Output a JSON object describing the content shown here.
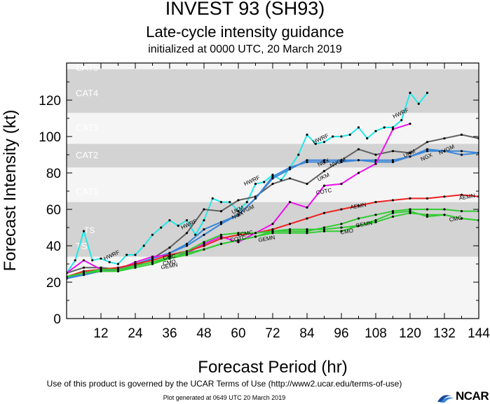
{
  "header": {
    "title": "INVEST 93 (SH93)",
    "subtitle": "Late-cycle intensity guidance",
    "init_line": "initialized at 0000 UTC, 20 March 2019"
  },
  "footer": {
    "terms": "Use of this product is governed by the UCAR Terms of Use (http://www2.ucar.edu/terms-of-use)",
    "generated": "Plot generated at 0649 UTC   20 March 2019",
    "logo_text": "NCAR"
  },
  "colors": {
    "band_dark": "#d3d3d3",
    "band_light": "#f5f5f5",
    "HWRF": "#22e8e8",
    "NGX": "#3a86d8",
    "UKM": "#606060",
    "COTC": "#ee11ee",
    "AEMN": "#ee2020",
    "CMC": "#33cc33",
    "GEMN": "#33cc33",
    "CMO": "#33cc33",
    "NVGM": "#3a86d8",
    "base": "#2a40b0"
  },
  "chart_data": {
    "type": "line",
    "title": "Late-cycle intensity guidance",
    "xlabel": "Forecast Period (hr)",
    "ylabel": "Forecast Intensity (kt)",
    "xlim": [
      0,
      144
    ],
    "ylim": [
      0,
      135
    ],
    "xticks": [
      12,
      24,
      36,
      48,
      60,
      72,
      84,
      96,
      108,
      120,
      132,
      144
    ],
    "yticks": [
      0,
      20,
      40,
      60,
      80,
      100,
      120
    ],
    "categories_bands": [
      {
        "label": "TS",
        "from": 34,
        "to": 64,
        "shade": "dark"
      },
      {
        "label": "CAT1",
        "from": 64,
        "to": 83,
        "shade": "light"
      },
      {
        "label": "CAT2",
        "from": 83,
        "to": 96,
        "shade": "dark"
      },
      {
        "label": "CAT3",
        "from": 96,
        "to": 113,
        "shade": "light"
      },
      {
        "label": "CAT4",
        "from": 113,
        "to": 137,
        "shade": "dark"
      },
      {
        "label": "CAT5",
        "from": 137,
        "to": 160,
        "shade": "light"
      }
    ],
    "series": [
      {
        "name": "HWRF",
        "color_key": "HWRF",
        "x": [
          0,
          3,
          6,
          9,
          12,
          15,
          18,
          21,
          24,
          27,
          30,
          33,
          36,
          39,
          42,
          45,
          48,
          51,
          54,
          57,
          60,
          63,
          66,
          69,
          72,
          75,
          78,
          81,
          84,
          87,
          90,
          93,
          96,
          99,
          102,
          105,
          108,
          111,
          114,
          117,
          120,
          123,
          126
        ],
        "y": [
          25,
          32,
          48,
          32,
          33,
          31,
          30,
          35,
          35,
          40,
          46,
          50,
          54,
          51,
          54,
          46,
          54,
          66,
          64,
          64,
          59,
          64,
          74,
          75,
          79,
          76,
          83,
          90,
          101,
          96,
          97,
          100,
          100,
          101,
          105,
          99,
          103,
          105,
          105,
          109,
          124,
          118,
          124
        ],
        "labels": [
          {
            "text": "TS",
            "x": 8,
            "y": 48
          },
          {
            "text": "HWRF",
            "x": 16,
            "y": 35
          },
          {
            "text": "HWRF",
            "x": 43,
            "y": 52
          },
          {
            "text": "HWRF",
            "x": 65,
            "y": 76
          },
          {
            "text": "HWRF",
            "x": 89,
            "y": 99
          },
          {
            "text": "HWRF",
            "x": 117,
            "y": 113
          }
        ]
      },
      {
        "name": "UKM",
        "color_key": "UKM",
        "x": [
          0,
          6,
          12,
          18,
          24,
          30,
          36,
          42,
          48,
          54,
          60,
          66,
          72,
          78,
          84,
          90,
          96,
          102,
          108,
          114,
          120,
          126,
          132,
          138,
          144
        ],
        "y": [
          25,
          28,
          28,
          27,
          29,
          33,
          39,
          47,
          60,
          59,
          65,
          67,
          74,
          77,
          74,
          81,
          87,
          93,
          90,
          92,
          91,
          97,
          99,
          101,
          99
        ],
        "labels": [
          {
            "text": "UKM",
            "x": 60,
            "y": 60
          },
          {
            "text": "UKM",
            "x": 90,
            "y": 78
          },
          {
            "text": "UKM",
            "x": 120,
            "y": 91
          }
        ]
      },
      {
        "name": "NGX",
        "color_key": "NGX",
        "x": [
          0,
          6,
          12,
          18,
          24,
          30,
          36,
          42,
          48,
          54,
          60,
          66,
          72,
          78,
          84,
          90,
          96,
          102,
          108,
          114,
          120,
          126,
          132,
          138,
          144
        ],
        "y": [
          22,
          24,
          26,
          27,
          30,
          33,
          36,
          40,
          46,
          52,
          57,
          66,
          78,
          83,
          86,
          86,
          86,
          87,
          87,
          87,
          89,
          92,
          92,
          92,
          91
        ],
        "labels": [
          {
            "text": "NGX",
            "x": 60,
            "y": 57
          },
          {
            "text": "NGX",
            "x": 90,
            "y": 86
          },
          {
            "text": "NGX",
            "x": 126,
            "y": 89
          }
        ]
      },
      {
        "name": "NVGM",
        "color_key": "NVGM",
        "x": [
          0,
          6,
          12,
          18,
          24,
          30,
          36,
          42,
          48,
          54,
          60,
          66,
          72,
          78,
          84,
          90,
          96,
          102,
          108,
          114,
          120,
          126,
          132,
          138,
          144
        ],
        "y": [
          22,
          25,
          27,
          27,
          30,
          33,
          36,
          41,
          49,
          53,
          57,
          66,
          77,
          82,
          87,
          87,
          87,
          87,
          86,
          86,
          89,
          93,
          92,
          90,
          91
        ],
        "labels": [
          {
            "text": "NVGM",
            "x": 63,
            "y": 60
          },
          {
            "text": "NVGM",
            "x": 95,
            "y": 86
          },
          {
            "text": "NVGM",
            "x": 133,
            "y": 93
          }
        ]
      },
      {
        "name": "COTC",
        "color_key": "COTC",
        "x": [
          0,
          6,
          12,
          18,
          24,
          30,
          36,
          42,
          48,
          54,
          60,
          66,
          72,
          78,
          84,
          90,
          96,
          102,
          108,
          114,
          120
        ],
        "y": [
          25,
          32,
          27,
          27,
          31,
          34,
          35,
          36,
          41,
          45,
          42,
          47,
          52,
          64,
          61,
          73,
          74,
          80,
          85,
          104,
          107
        ],
        "labels": [
          {
            "text": "COTC",
            "x": 60,
            "y": 44
          },
          {
            "text": "COTC",
            "x": 90,
            "y": 70
          }
        ]
      },
      {
        "name": "AEMN",
        "color_key": "AEMN",
        "x": [
          0,
          6,
          12,
          18,
          24,
          30,
          36,
          42,
          48,
          54,
          60,
          66,
          72,
          78,
          84,
          90,
          96,
          102,
          108,
          114,
          120,
          126,
          132,
          138,
          144
        ],
        "y": [
          23,
          26,
          27,
          28,
          30,
          32,
          35,
          37,
          40,
          44,
          46,
          47,
          49,
          52,
          55,
          58,
          60,
          62,
          64,
          65,
          66,
          66,
          67,
          68,
          67
        ],
        "labels": [
          {
            "text": "AEMN",
            "x": 102,
            "y": 62
          },
          {
            "text": "AEMN",
            "x": 140,
            "y": 67
          }
        ]
      },
      {
        "name": "CMC",
        "color_key": "CMC",
        "x": [
          0,
          6,
          12,
          18,
          24,
          30,
          36,
          42,
          48,
          54,
          60,
          66,
          72,
          78,
          84,
          90,
          96,
          102,
          108,
          114,
          120,
          126,
          132,
          138,
          144
        ],
        "y": [
          23,
          25,
          27,
          27,
          29,
          31,
          34,
          37,
          42,
          46,
          47,
          47,
          48,
          49,
          49,
          49,
          50,
          51,
          54,
          58,
          59,
          56,
          57,
          55,
          54
        ],
        "labels": [
          {
            "text": "CMC",
            "x": 36,
            "y": 34
          },
          {
            "text": "CMC",
            "x": 63,
            "y": 47
          },
          {
            "text": "CMC",
            "x": 136,
            "y": 55
          }
        ]
      },
      {
        "name": "GEMN",
        "color_key": "GEMN",
        "x": [
          0,
          6,
          12,
          18,
          24,
          30,
          36,
          42,
          48,
          54,
          60,
          66,
          72,
          78,
          84,
          90,
          96,
          102,
          108,
          114,
          120,
          126,
          132,
          138,
          144
        ],
        "y": [
          23,
          25,
          26,
          26,
          29,
          31,
          33,
          35,
          38,
          41,
          43,
          45,
          48,
          48,
          48,
          50,
          52,
          55,
          57,
          59,
          60,
          60,
          60,
          59,
          59
        ],
        "labels": [
          {
            "text": "GEMN",
            "x": 36,
            "y": 29
          },
          {
            "text": "GEMN",
            "x": 70,
            "y": 44
          },
          {
            "text": "GEMN",
            "x": 104,
            "y": 52
          }
        ]
      },
      {
        "name": "CMO",
        "color_key": "CMO",
        "x": [
          0,
          6,
          12,
          18,
          24,
          30,
          36,
          42,
          48,
          54,
          60,
          66,
          72,
          78,
          84,
          90,
          96,
          102,
          108,
          114,
          120,
          126,
          132,
          138,
          144
        ],
        "y": [
          23,
          25,
          26,
          26,
          28,
          30,
          33,
          36,
          38,
          41,
          43,
          45,
          47,
          47,
          47,
          48,
          48,
          51,
          53,
          56,
          58,
          57,
          57,
          55,
          54
        ],
        "labels": [
          {
            "text": "CMO",
            "x": 36,
            "y": 31
          },
          {
            "text": "CMO",
            "x": 98,
            "y": 48
          }
        ]
      }
    ]
  }
}
